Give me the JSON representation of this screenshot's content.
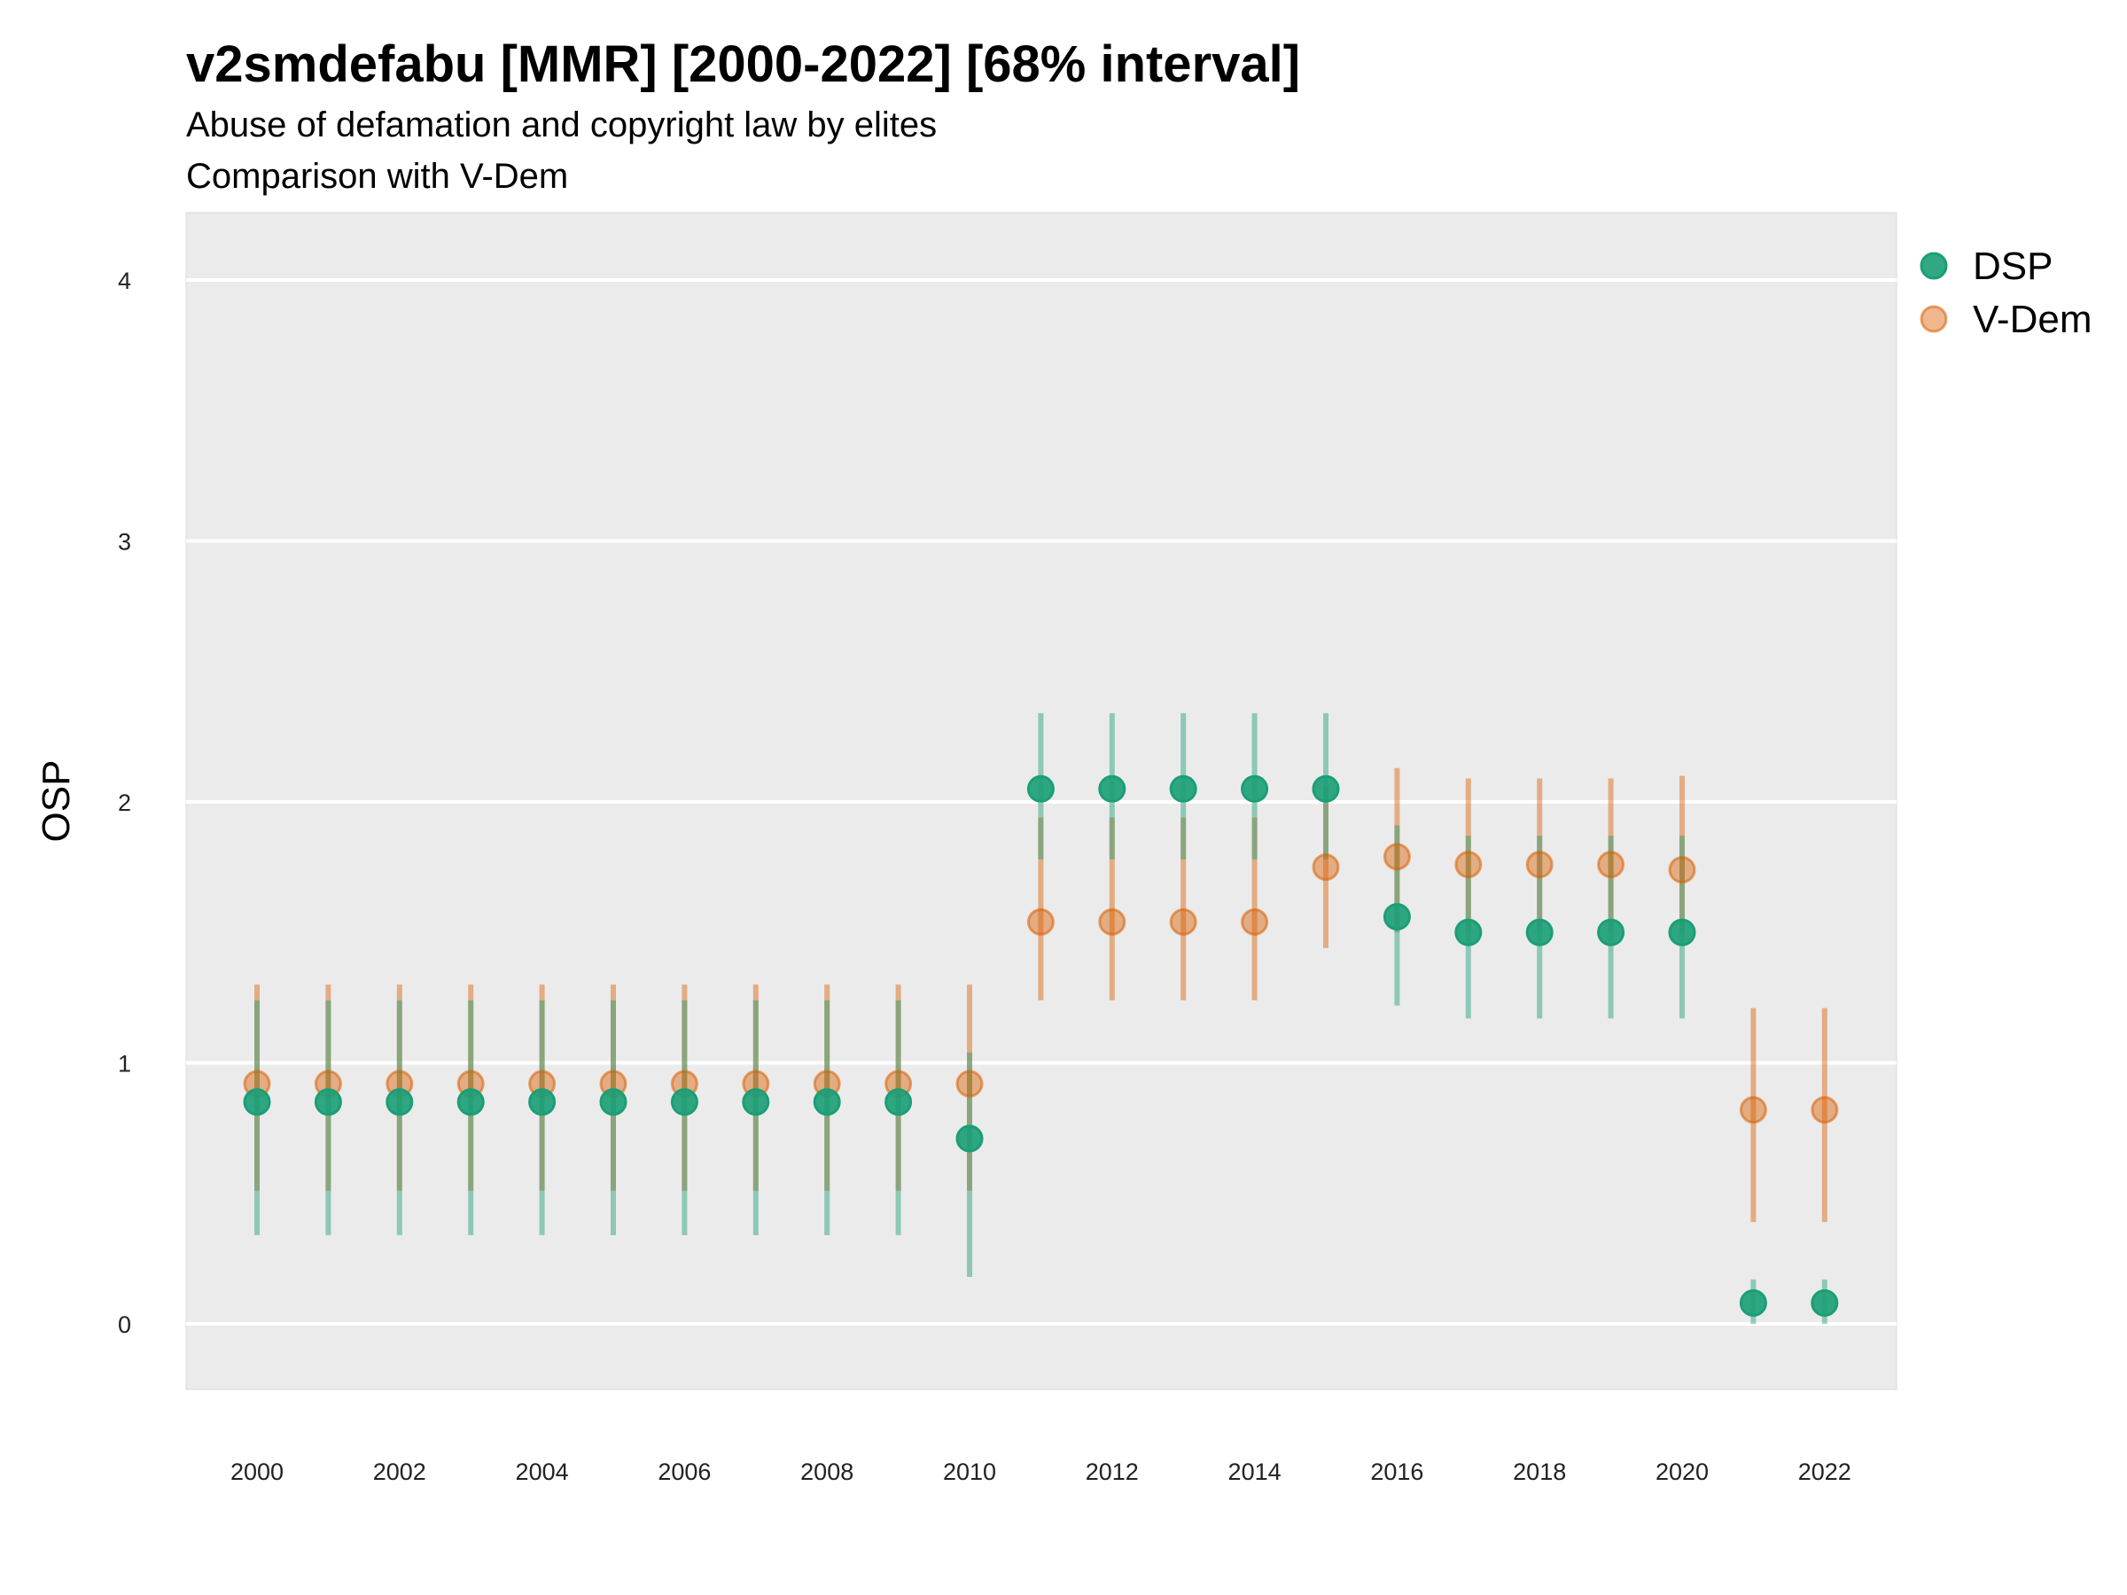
{
  "chart_data": {
    "type": "scatter",
    "title": "v2smdefabu [MMR] [2000-2022] [68% interval]",
    "subtitle_lines": [
      "Abuse of defamation and copyright law by elites",
      "Comparison with V-Dem"
    ],
    "xlabel": "",
    "ylabel": "OSP",
    "ylim": [
      -0.25,
      4.25
    ],
    "xlim": [
      1999,
      2023
    ],
    "yticks": [
      0,
      1,
      2,
      3,
      4
    ],
    "xticks": [
      2000,
      2002,
      2004,
      2006,
      2008,
      2010,
      2012,
      2014,
      2016,
      2018,
      2020,
      2022
    ],
    "grid": true,
    "legend_position": "right",
    "x": [
      2000,
      2001,
      2002,
      2003,
      2004,
      2005,
      2006,
      2007,
      2008,
      2009,
      2010,
      2011,
      2012,
      2013,
      2014,
      2015,
      2016,
      2017,
      2018,
      2019,
      2020,
      2021,
      2022
    ],
    "series": [
      {
        "name": "DSP",
        "color": "#1b9e77",
        "values": [
          0.85,
          0.85,
          0.85,
          0.85,
          0.85,
          0.85,
          0.85,
          0.85,
          0.85,
          0.85,
          0.71,
          2.05,
          2.05,
          2.05,
          2.05,
          2.05,
          1.56,
          1.5,
          1.5,
          1.5,
          1.5,
          0.08,
          0.08
        ],
        "lower": [
          0.34,
          0.34,
          0.34,
          0.34,
          0.34,
          0.34,
          0.34,
          0.34,
          0.34,
          0.34,
          0.18,
          1.78,
          1.78,
          1.78,
          1.78,
          1.78,
          1.22,
          1.17,
          1.17,
          1.17,
          1.17,
          0.0,
          0.0
        ],
        "upper": [
          1.24,
          1.24,
          1.24,
          1.24,
          1.24,
          1.24,
          1.24,
          1.24,
          1.24,
          1.24,
          1.04,
          2.34,
          2.34,
          2.34,
          2.34,
          2.34,
          1.91,
          1.87,
          1.87,
          1.87,
          1.87,
          0.17,
          0.17
        ]
      },
      {
        "name": "V-Dem",
        "color": "#d95f02",
        "values": [
          0.92,
          0.92,
          0.92,
          0.92,
          0.92,
          0.92,
          0.92,
          0.92,
          0.92,
          0.92,
          0.92,
          1.54,
          1.54,
          1.54,
          1.54,
          1.75,
          1.79,
          1.76,
          1.76,
          1.76,
          1.74,
          0.82,
          0.82
        ],
        "lower": [
          0.51,
          0.51,
          0.51,
          0.51,
          0.51,
          0.51,
          0.51,
          0.51,
          0.51,
          0.51,
          0.51,
          1.24,
          1.24,
          1.24,
          1.24,
          1.44,
          1.5,
          1.5,
          1.5,
          1.5,
          1.5,
          0.39,
          0.39
        ],
        "upper": [
          1.3,
          1.3,
          1.3,
          1.3,
          1.3,
          1.3,
          1.3,
          1.3,
          1.3,
          1.3,
          1.3,
          1.94,
          1.94,
          1.94,
          1.94,
          2.06,
          2.13,
          2.09,
          2.09,
          2.09,
          2.1,
          1.21,
          1.21
        ]
      }
    ]
  }
}
